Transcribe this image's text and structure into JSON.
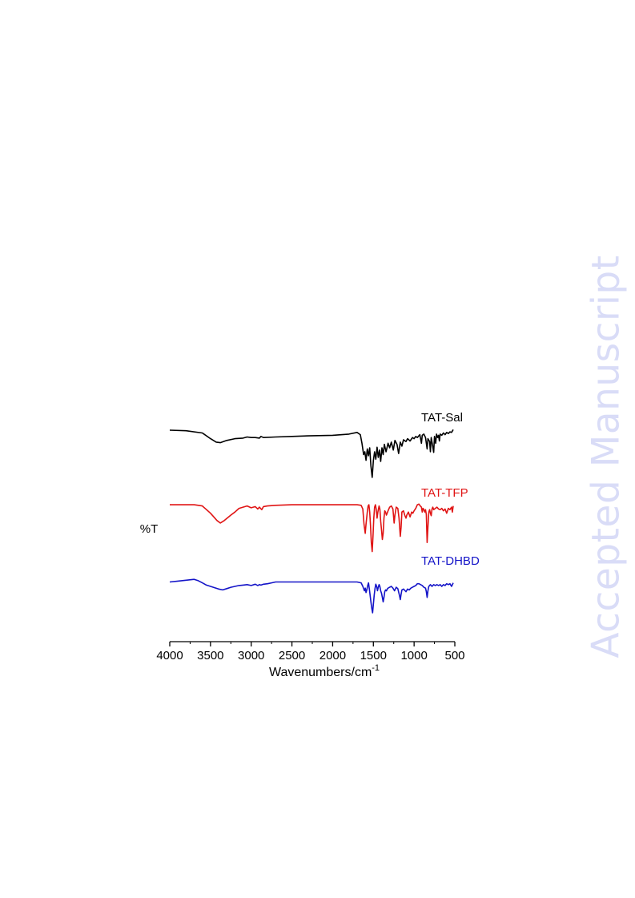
{
  "watermark": "Accepted Manuscript",
  "chart_data": {
    "type": "line",
    "xlabel": "Wavenumbers/cm",
    "xlabel_superscript": "-1",
    "ylabel": "%T",
    "xlim": [
      4000,
      500
    ],
    "x_reversed": true,
    "xticks": [
      4000,
      3500,
      3000,
      2500,
      2000,
      1500,
      1000,
      500
    ],
    "y_ticks_shown": false,
    "grid": false,
    "series": [
      {
        "name": "TAT-Sal",
        "color": "#000000",
        "points": [
          [
            4000,
            93
          ],
          [
            3800,
            92
          ],
          [
            3600,
            88
          ],
          [
            3500,
            78
          ],
          [
            3430,
            72
          ],
          [
            3380,
            71
          ],
          [
            3300,
            75
          ],
          [
            3200,
            78
          ],
          [
            3100,
            79
          ],
          [
            3050,
            81
          ],
          [
            3000,
            80
          ],
          [
            2950,
            80
          ],
          [
            2900,
            79
          ],
          [
            2880,
            82
          ],
          [
            2850,
            80
          ],
          [
            2700,
            81
          ],
          [
            2500,
            82
          ],
          [
            2300,
            83
          ],
          [
            2000,
            84
          ],
          [
            1800,
            86
          ],
          [
            1700,
            89
          ],
          [
            1660,
            85
          ],
          [
            1640,
            70
          ],
          [
            1620,
            50
          ],
          [
            1605,
            55
          ],
          [
            1590,
            40
          ],
          [
            1575,
            60
          ],
          [
            1560,
            48
          ],
          [
            1545,
            62
          ],
          [
            1530,
            30
          ],
          [
            1515,
            10
          ],
          [
            1500,
            40
          ],
          [
            1485,
            55
          ],
          [
            1470,
            42
          ],
          [
            1455,
            63
          ],
          [
            1440,
            45
          ],
          [
            1425,
            58
          ],
          [
            1410,
            38
          ],
          [
            1395,
            62
          ],
          [
            1380,
            50
          ],
          [
            1365,
            68
          ],
          [
            1345,
            55
          ],
          [
            1320,
            70
          ],
          [
            1300,
            62
          ],
          [
            1280,
            72
          ],
          [
            1255,
            58
          ],
          [
            1235,
            75
          ],
          [
            1210,
            68
          ],
          [
            1190,
            52
          ],
          [
            1170,
            72
          ],
          [
            1150,
            65
          ],
          [
            1130,
            76
          ],
          [
            1100,
            73
          ],
          [
            1080,
            78
          ],
          [
            1050,
            74
          ],
          [
            1020,
            80
          ],
          [
            1000,
            78
          ],
          [
            980,
            82
          ],
          [
            960,
            80
          ],
          [
            930,
            85
          ],
          [
            910,
            70
          ],
          [
            900,
            84
          ],
          [
            880,
            86
          ],
          [
            860,
            80
          ],
          [
            840,
            60
          ],
          [
            830,
            78
          ],
          [
            810,
            73
          ],
          [
            800,
            55
          ],
          [
            790,
            80
          ],
          [
            775,
            68
          ],
          [
            760,
            54
          ],
          [
            750,
            82
          ],
          [
            735,
            70
          ],
          [
            725,
            86
          ],
          [
            710,
            80
          ],
          [
            700,
            84
          ],
          [
            690,
            74
          ],
          [
            680,
            86
          ],
          [
            660,
            84
          ],
          [
            640,
            88
          ],
          [
            620,
            85
          ],
          [
            600,
            89
          ],
          [
            580,
            87
          ],
          [
            560,
            90
          ],
          [
            540,
            89
          ],
          [
            520,
            94
          ]
        ]
      },
      {
        "name": "TAT-TFP",
        "color": "#e01414",
        "points": [
          [
            4000,
            92
          ],
          [
            3700,
            92
          ],
          [
            3600,
            90
          ],
          [
            3500,
            78
          ],
          [
            3420,
            66
          ],
          [
            3380,
            62
          ],
          [
            3330,
            66
          ],
          [
            3250,
            75
          ],
          [
            3200,
            80
          ],
          [
            3150,
            86
          ],
          [
            3100,
            88
          ],
          [
            3050,
            90
          ],
          [
            3000,
            87
          ],
          [
            2950,
            89
          ],
          [
            2920,
            85
          ],
          [
            2900,
            88
          ],
          [
            2870,
            84
          ],
          [
            2850,
            89
          ],
          [
            2800,
            90
          ],
          [
            2700,
            91
          ],
          [
            2500,
            92
          ],
          [
            2200,
            92
          ],
          [
            2000,
            92
          ],
          [
            1800,
            92
          ],
          [
            1700,
            92
          ],
          [
            1650,
            91
          ],
          [
            1630,
            85
          ],
          [
            1615,
            60
          ],
          [
            1600,
            45
          ],
          [
            1590,
            60
          ],
          [
            1575,
            80
          ],
          [
            1565,
            90
          ],
          [
            1555,
            92
          ],
          [
            1545,
            80
          ],
          [
            1535,
            58
          ],
          [
            1525,
            30
          ],
          [
            1515,
            15
          ],
          [
            1505,
            40
          ],
          [
            1495,
            70
          ],
          [
            1485,
            88
          ],
          [
            1475,
            92
          ],
          [
            1465,
            85
          ],
          [
            1455,
            70
          ],
          [
            1445,
            80
          ],
          [
            1430,
            90
          ],
          [
            1420,
            85
          ],
          [
            1410,
            65
          ],
          [
            1400,
            50
          ],
          [
            1390,
            35
          ],
          [
            1380,
            45
          ],
          [
            1370,
            70
          ],
          [
            1360,
            82
          ],
          [
            1350,
            80
          ],
          [
            1340,
            75
          ],
          [
            1320,
            82
          ],
          [
            1300,
            88
          ],
          [
            1280,
            90
          ],
          [
            1260,
            85
          ],
          [
            1245,
            62
          ],
          [
            1235,
            75
          ],
          [
            1220,
            88
          ],
          [
            1200,
            86
          ],
          [
            1185,
            70
          ],
          [
            1170,
            40
          ],
          [
            1160,
            55
          ],
          [
            1150,
            80
          ],
          [
            1130,
            82
          ],
          [
            1115,
            75
          ],
          [
            1100,
            70
          ],
          [
            1090,
            75
          ],
          [
            1070,
            80
          ],
          [
            1050,
            72
          ],
          [
            1030,
            80
          ],
          [
            1015,
            78
          ],
          [
            1000,
            82
          ],
          [
            980,
            86
          ],
          [
            960,
            92
          ],
          [
            940,
            93
          ],
          [
            925,
            90
          ],
          [
            910,
            88
          ],
          [
            900,
            80
          ],
          [
            890,
            86
          ],
          [
            880,
            84
          ],
          [
            870,
            80
          ],
          [
            860,
            84
          ],
          [
            850,
            76
          ],
          [
            840,
            30
          ],
          [
            830,
            55
          ],
          [
            820,
            80
          ],
          [
            810,
            84
          ],
          [
            800,
            78
          ],
          [
            790,
            74
          ],
          [
            780,
            85
          ],
          [
            770,
            88
          ],
          [
            760,
            84
          ],
          [
            740,
            86
          ],
          [
            720,
            88
          ],
          [
            700,
            85
          ],
          [
            680,
            84
          ],
          [
            660,
            86
          ],
          [
            640,
            82
          ],
          [
            620,
            85
          ],
          [
            600,
            78
          ],
          [
            580,
            86
          ],
          [
            560,
            84
          ],
          [
            540,
            88
          ],
          [
            530,
            80
          ],
          [
            520,
            90
          ]
        ]
      },
      {
        "name": "TAT-DHBD",
        "color": "#1414c8",
        "points": [
          [
            4000,
            90
          ],
          [
            3900,
            92
          ],
          [
            3800,
            94
          ],
          [
            3700,
            96
          ],
          [
            3650,
            93
          ],
          [
            3600,
            88
          ],
          [
            3550,
            83
          ],
          [
            3500,
            80
          ],
          [
            3450,
            77
          ],
          [
            3400,
            74
          ],
          [
            3350,
            72
          ],
          [
            3300,
            75
          ],
          [
            3250,
            78
          ],
          [
            3200,
            80
          ],
          [
            3150,
            82
          ],
          [
            3100,
            83
          ],
          [
            3050,
            84
          ],
          [
            3000,
            82
          ],
          [
            2950,
            85
          ],
          [
            2920,
            82
          ],
          [
            2900,
            84
          ],
          [
            2880,
            83
          ],
          [
            2850,
            85
          ],
          [
            2800,
            86
          ],
          [
            2750,
            88
          ],
          [
            2700,
            90
          ],
          [
            2600,
            90
          ],
          [
            2500,
            90
          ],
          [
            2300,
            90
          ],
          [
            2000,
            90
          ],
          [
            1800,
            90
          ],
          [
            1700,
            90
          ],
          [
            1650,
            88
          ],
          [
            1630,
            80
          ],
          [
            1610,
            70
          ],
          [
            1600,
            76
          ],
          [
            1590,
            66
          ],
          [
            1580,
            72
          ],
          [
            1570,
            82
          ],
          [
            1560,
            88
          ],
          [
            1550,
            75
          ],
          [
            1540,
            60
          ],
          [
            1530,
            45
          ],
          [
            1520,
            30
          ],
          [
            1510,
            20
          ],
          [
            1500,
            40
          ],
          [
            1490,
            60
          ],
          [
            1480,
            75
          ],
          [
            1470,
            85
          ],
          [
            1460,
            80
          ],
          [
            1450,
            70
          ],
          [
            1440,
            78
          ],
          [
            1430,
            84
          ],
          [
            1420,
            80
          ],
          [
            1410,
            70
          ],
          [
            1400,
            64
          ],
          [
            1390,
            55
          ],
          [
            1380,
            45
          ],
          [
            1370,
            55
          ],
          [
            1360,
            68
          ],
          [
            1350,
            72
          ],
          [
            1340,
            70
          ],
          [
            1330,
            74
          ],
          [
            1320,
            76
          ],
          [
            1300,
            78
          ],
          [
            1280,
            80
          ],
          [
            1260,
            76
          ],
          [
            1240,
            70
          ],
          [
            1230,
            74
          ],
          [
            1220,
            78
          ],
          [
            1200,
            75
          ],
          [
            1180,
            60
          ],
          [
            1170,
            50
          ],
          [
            1160,
            62
          ],
          [
            1150,
            72
          ],
          [
            1130,
            74
          ],
          [
            1110,
            70
          ],
          [
            1100,
            68
          ],
          [
            1080,
            74
          ],
          [
            1060,
            72
          ],
          [
            1040,
            76
          ],
          [
            1020,
            78
          ],
          [
            1000,
            80
          ],
          [
            980,
            82
          ],
          [
            960,
            86
          ],
          [
            940,
            86
          ],
          [
            920,
            84
          ],
          [
            900,
            82
          ],
          [
            880,
            78
          ],
          [
            860,
            76
          ],
          [
            850,
            68
          ],
          [
            840,
            55
          ],
          [
            830,
            70
          ],
          [
            820,
            80
          ],
          [
            810,
            82
          ],
          [
            800,
            84
          ],
          [
            780,
            80
          ],
          [
            760,
            84
          ],
          [
            740,
            82
          ],
          [
            720,
            84
          ],
          [
            700,
            82
          ],
          [
            680,
            84
          ],
          [
            660,
            80
          ],
          [
            640,
            84
          ],
          [
            620,
            82
          ],
          [
            600,
            86
          ],
          [
            580,
            84
          ],
          [
            560,
            86
          ],
          [
            540,
            80
          ],
          [
            520,
            88
          ]
        ]
      }
    ]
  }
}
